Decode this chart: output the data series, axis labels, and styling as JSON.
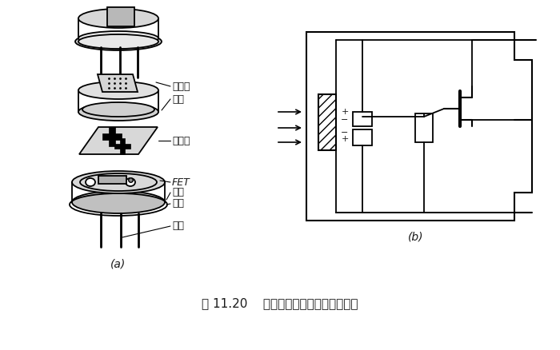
{
  "title": "图 11.20    热释电人体红外传感器的结构",
  "label_a": "(a)",
  "label_b": "(b)",
  "bg_color": "#ffffff",
  "line_color": "#1a1a1a",
  "labels": {
    "filter": "滤光片",
    "cap": "管帽",
    "sensor": "敏感元",
    "fet": "FET",
    "socket": "管座",
    "resistor": "高阻",
    "lead": "引线"
  },
  "font_size_label": 9,
  "font_size_caption": 11
}
